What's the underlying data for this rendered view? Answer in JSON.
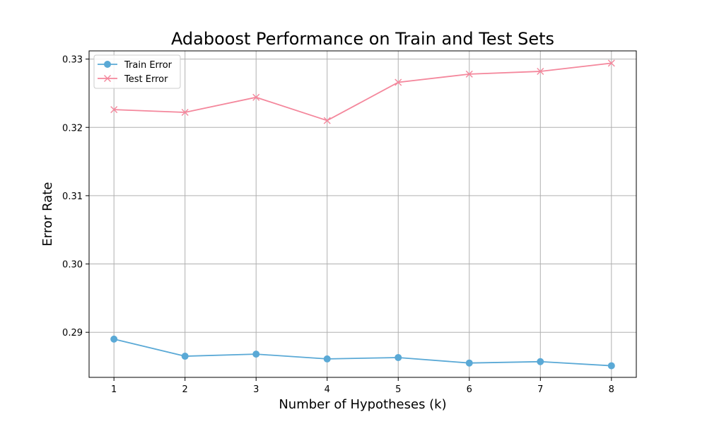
{
  "chart_data": {
    "type": "line",
    "title": "Adaboost Performance on Train and Test Sets",
    "xlabel": "Number of Hypotheses (k)",
    "ylabel": "Error Rate",
    "x": [
      1,
      2,
      3,
      4,
      5,
      6,
      7,
      8
    ],
    "x_ticks": [
      "1",
      "2",
      "3",
      "4",
      "5",
      "6",
      "7",
      "8"
    ],
    "y_ticks": [
      "0.29",
      "0.30",
      "0.31",
      "0.32",
      "0.33"
    ],
    "y_tick_values": [
      0.29,
      0.3,
      0.31,
      0.32,
      0.33
    ],
    "xlim": [
      0.65,
      8.35
    ],
    "ylim": [
      0.2834,
      0.3312
    ],
    "grid": true,
    "legend_position": "top-left",
    "series": [
      {
        "name": "Train Error",
        "values": [
          0.289,
          0.2865,
          0.2868,
          0.2861,
          0.2863,
          0.2855,
          0.2857,
          0.2851
        ],
        "color": "#5aa9d6",
        "marker": "circle"
      },
      {
        "name": "Test Error",
        "values": [
          0.3226,
          0.3222,
          0.3244,
          0.321,
          0.3266,
          0.3278,
          0.3282,
          0.3294
        ],
        "color": "#f4879c",
        "marker": "x"
      }
    ]
  }
}
